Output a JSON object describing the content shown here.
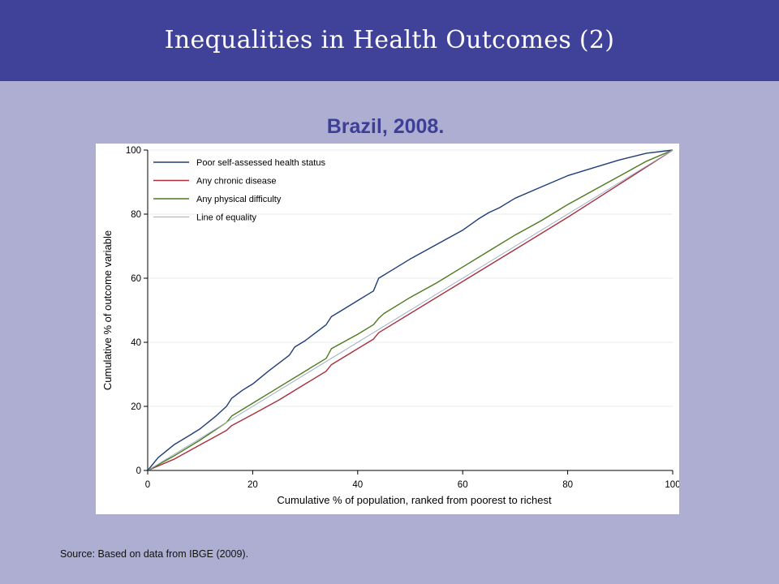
{
  "slide": {
    "title": "Inequalities in Health Outcomes (2)",
    "source": "Source: Based on data from IBGE (2009)."
  },
  "colors": {
    "banner": "#40429a",
    "background": "#adaed2",
    "subtitle": "#3d3f97"
  },
  "chart_data": {
    "type": "line",
    "title": "Brazil, 2008.",
    "xlabel": "Cumulative % of population, ranked from poorest to richest",
    "ylabel": "Cumulative % of outcome variable",
    "xlim": [
      0,
      100
    ],
    "ylim": [
      0,
      100
    ],
    "xticks": [
      0,
      20,
      40,
      60,
      80,
      100
    ],
    "yticks": [
      0,
      20,
      40,
      60,
      80,
      100
    ],
    "grid": "horizontal",
    "legend_position": "top-left",
    "series": [
      {
        "name": "Poor self-assessed health status",
        "color": "#1f3d78",
        "x": [
          0,
          2,
          5,
          8,
          10,
          13,
          15,
          16,
          18,
          20,
          23,
          25,
          27,
          28,
          30,
          32,
          34,
          35,
          37,
          40,
          42,
          43,
          44,
          47,
          50,
          55,
          60,
          63,
          65,
          67,
          70,
          75,
          80,
          85,
          90,
          95,
          100
        ],
        "y": [
          0,
          4,
          8,
          11,
          13,
          17,
          20,
          22.5,
          25,
          27,
          31,
          33.5,
          36,
          38.5,
          40.5,
          43,
          45.5,
          48,
          50,
          53,
          55,
          56,
          60,
          63,
          66,
          70.5,
          75,
          78.5,
          80.5,
          82,
          85,
          88.5,
          92,
          94.5,
          97,
          99,
          100
        ]
      },
      {
        "name": "Any chronic disease",
        "color": "#a8303e",
        "x": [
          0,
          5,
          10,
          15,
          16,
          20,
          25,
          30,
          34,
          35,
          40,
          43,
          44,
          45,
          50,
          60,
          70,
          80,
          90,
          100
        ],
        "y": [
          0,
          3.5,
          8,
          12.5,
          14,
          17.5,
          22,
          27,
          31,
          33,
          38,
          41,
          43,
          44,
          49,
          59,
          69,
          79,
          89.5,
          100
        ]
      },
      {
        "name": "Any physical difficulty",
        "color": "#4e7a1e",
        "x": [
          0,
          5,
          10,
          15,
          16,
          20,
          25,
          30,
          34,
          35,
          40,
          43,
          44,
          45,
          50,
          55,
          60,
          65,
          70,
          75,
          80,
          85,
          90,
          95,
          100
        ],
        "y": [
          0,
          4.5,
          9.5,
          15,
          17,
          21,
          26,
          31,
          35,
          38,
          42.5,
          45.5,
          47.5,
          49,
          54,
          58.5,
          63.5,
          68.5,
          73.5,
          78,
          83,
          87.5,
          92,
          96.5,
          100
        ]
      },
      {
        "name": "Line of equality",
        "color": "#9fb0c8",
        "x": [
          0,
          100
        ],
        "y": [
          0,
          100
        ]
      }
    ]
  }
}
